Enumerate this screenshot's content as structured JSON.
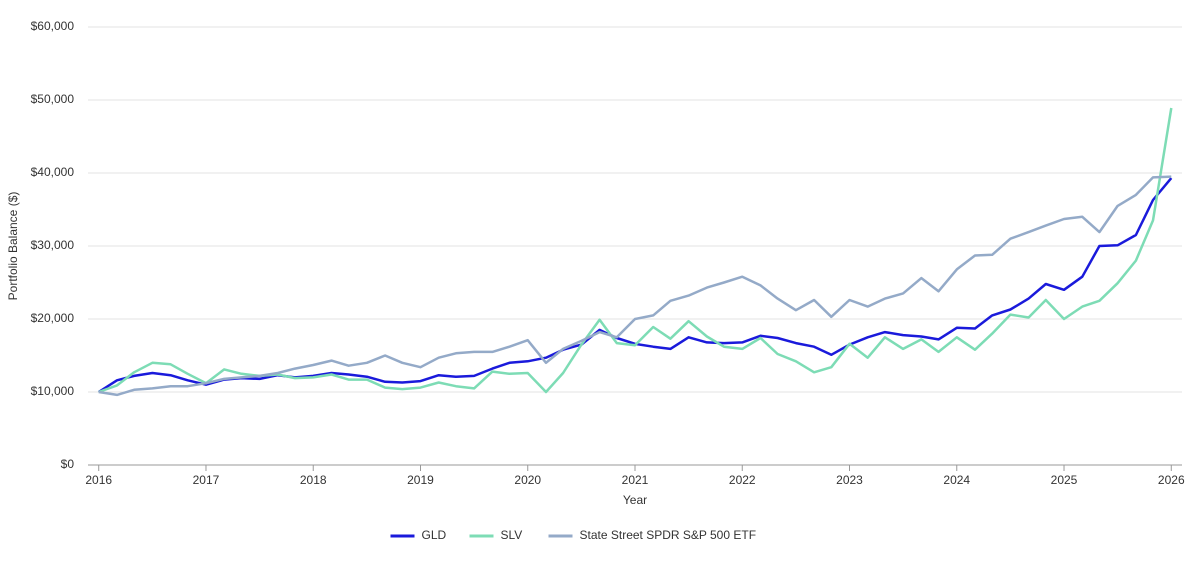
{
  "chart_data": {
    "type": "line",
    "y_label": "Portfolio Balance ($)",
    "x_label": "Year",
    "x": [
      2016,
      2016.17,
      2016.33,
      2016.5,
      2016.67,
      2016.83,
      2017,
      2017.17,
      2017.33,
      2017.5,
      2017.67,
      2017.83,
      2018,
      2018.17,
      2018.33,
      2018.5,
      2018.67,
      2018.83,
      2019,
      2019.17,
      2019.33,
      2019.5,
      2019.67,
      2019.83,
      2020,
      2020.17,
      2020.33,
      2020.5,
      2020.67,
      2020.83,
      2021,
      2021.17,
      2021.33,
      2021.5,
      2021.67,
      2021.83,
      2022,
      2022.17,
      2022.33,
      2022.5,
      2022.67,
      2022.83,
      2023,
      2023.17,
      2023.33,
      2023.5,
      2023.67,
      2023.83,
      2024,
      2024.17,
      2024.33,
      2024.5,
      2024.67,
      2024.83,
      2025,
      2025.17,
      2025.33,
      2025.5,
      2025.67,
      2025.83,
      2026
    ],
    "series": [
      {
        "name": "GLD",
        "color": "#1a1adb",
        "values": [
          10000,
          11600,
          12200,
          12600,
          12300,
          11600,
          11000,
          11700,
          11900,
          11800,
          12300,
          12000,
          12200,
          12600,
          12400,
          12100,
          11400,
          11300,
          11500,
          12300,
          12100,
          12200,
          13200,
          14000,
          14200,
          14700,
          15800,
          16500,
          18500,
          17400,
          16600,
          16200,
          15900,
          17500,
          16800,
          16700,
          16800,
          17700,
          17400,
          16700,
          16200,
          15100,
          16500,
          17500,
          18200,
          17800,
          17600,
          17200,
          18800,
          18700,
          20500,
          21300,
          22800,
          24800,
          24000,
          25800,
          30000,
          30100,
          31500,
          36300,
          39300
        ]
      },
      {
        "name": "SLV",
        "color": "#7ddcb5",
        "values": [
          10000,
          10900,
          12700,
          14000,
          13800,
          12500,
          11200,
          13100,
          12500,
          12200,
          12400,
          11900,
          12000,
          12400,
          11700,
          11700,
          10600,
          10400,
          10600,
          11300,
          10800,
          10500,
          12800,
          12500,
          12600,
          10000,
          12600,
          16500,
          19900,
          16700,
          16400,
          18900,
          17300,
          19700,
          17600,
          16200,
          15900,
          17400,
          15200,
          14200,
          12700,
          13400,
          16600,
          14700,
          17500,
          15900,
          17200,
          15500,
          17500,
          15800,
          18000,
          20600,
          20200,
          22600,
          20000,
          21700,
          22500,
          24900,
          28000,
          33500,
          48900
        ]
      },
      {
        "name": "State Street SPDR S&P 500 ETF",
        "color": "#94aac8",
        "values": [
          10000,
          9600,
          10300,
          10500,
          10800,
          10800,
          11200,
          11800,
          12000,
          12200,
          12600,
          13200,
          13700,
          14300,
          13600,
          14000,
          15000,
          14000,
          13400,
          14700,
          15300,
          15500,
          15500,
          16200,
          17100,
          14000,
          15900,
          17000,
          18200,
          17500,
          20000,
          20500,
          22500,
          23200,
          24300,
          25000,
          25800,
          24600,
          22800,
          21200,
          22600,
          20300,
          22600,
          21700,
          22800,
          23500,
          25600,
          23800,
          26800,
          28700,
          28800,
          31000,
          31900,
          32800,
          33700,
          34000,
          31900,
          35500,
          37000,
          39400,
          39500
        ]
      }
    ],
    "xlim": [
      2015.9,
      2026.1
    ],
    "xticks": [
      2016,
      2017,
      2018,
      2019,
      2020,
      2021,
      2022,
      2023,
      2024,
      2025,
      2026
    ],
    "ylim": [
      0,
      60000
    ],
    "yticks": [
      {
        "value": 0,
        "label": "$0"
      },
      {
        "value": 10000,
        "label": "$10,000"
      },
      {
        "value": 20000,
        "label": "$20,000"
      },
      {
        "value": 30000,
        "label": "$30,000"
      },
      {
        "value": 40000,
        "label": "$40,000"
      },
      {
        "value": 50000,
        "label": "$50,000"
      },
      {
        "value": 60000,
        "label": "$60,000"
      }
    ],
    "grid": true,
    "legend": "bottom"
  }
}
